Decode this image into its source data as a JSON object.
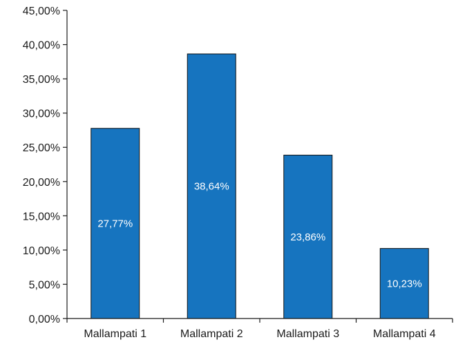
{
  "chart_data": {
    "type": "bar",
    "title": "",
    "xlabel": "",
    "ylabel": "",
    "categories": [
      "Mallampati 1",
      "Mallampati 2",
      "Mallampati 3",
      "Mallampati 4"
    ],
    "values": [
      27.77,
      38.64,
      23.86,
      10.23
    ],
    "data_labels": [
      "27,77%",
      "38,64%",
      "23,86%",
      "10,23%"
    ],
    "ylim": [
      0,
      45
    ],
    "y_ticks": [
      0,
      5,
      10,
      15,
      20,
      25,
      30,
      35,
      40,
      45
    ],
    "y_tick_labels": [
      "0,00%",
      "5,00%",
      "10,00%",
      "15,00%",
      "20,00%",
      "25,00%",
      "30,00%",
      "35,00%",
      "40,00%",
      "45,00%"
    ],
    "grid": false,
    "legend": "none",
    "colors": {
      "bar_fill": "#1674bf",
      "bar_stroke": "#111111",
      "axis": "#1a1a1a",
      "data_label": "#ffffff"
    }
  }
}
